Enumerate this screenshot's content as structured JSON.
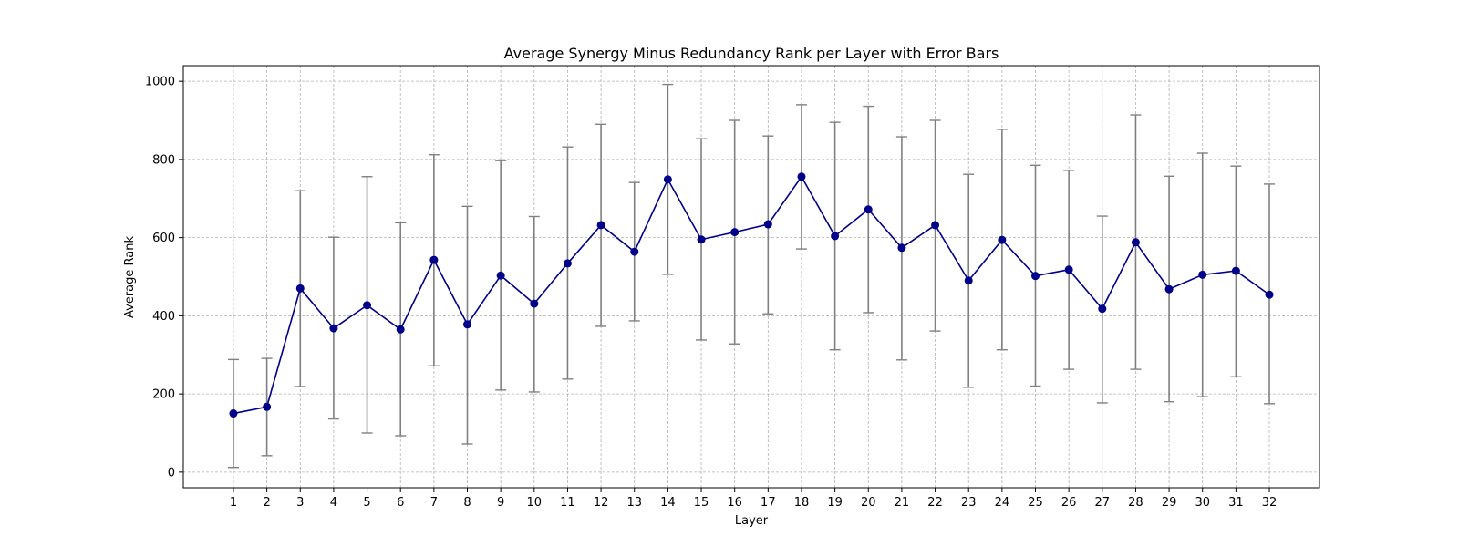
{
  "chart_data": {
    "type": "line",
    "title": "Average Synergy Minus Redundancy Rank per Layer with Error Bars",
    "xlabel": "Layer",
    "ylabel": "Average Rank",
    "x": [
      1,
      2,
      3,
      4,
      5,
      6,
      7,
      8,
      9,
      10,
      11,
      12,
      13,
      14,
      15,
      16,
      17,
      18,
      19,
      20,
      21,
      22,
      23,
      24,
      25,
      26,
      27,
      28,
      29,
      30,
      31,
      32
    ],
    "x_tick_labels": [
      "1",
      "2",
      "3",
      "4",
      "5",
      "6",
      "7",
      "8",
      "9",
      "10",
      "11",
      "12",
      "13",
      "14",
      "15",
      "16",
      "17",
      "18",
      "19",
      "20",
      "21",
      "22",
      "23",
      "24",
      "25",
      "26",
      "27",
      "28",
      "29",
      "30",
      "31",
      "32"
    ],
    "y_ticks": [
      0,
      200,
      400,
      600,
      800,
      1000
    ],
    "y_tick_labels": [
      "0",
      "200",
      "400",
      "600",
      "800",
      "1000"
    ],
    "xlim": [
      -0.5,
      33.5
    ],
    "ylim": [
      -40,
      1040
    ],
    "grid": true,
    "series": [
      {
        "values": [
          150,
          167,
          470,
          368,
          427,
          365,
          543,
          378,
          503,
          431,
          534,
          632,
          564,
          749,
          595,
          614,
          634,
          756,
          604,
          672,
          574,
          632,
          490,
          594,
          502,
          518,
          418,
          588,
          468,
          505,
          515,
          454
        ],
        "error_lower": [
          12,
          42,
          219,
          136,
          100,
          93,
          272,
          72,
          210,
          205,
          238,
          373,
          387,
          506,
          338,
          328,
          405,
          571,
          313,
          408,
          287,
          361,
          217,
          313,
          220,
          263,
          177,
          263,
          180,
          193,
          244,
          175
        ],
        "error_upper": [
          288,
          291,
          720,
          601,
          756,
          638,
          812,
          680,
          797,
          654,
          832,
          890,
          741,
          992,
          853,
          900,
          860,
          940,
          895,
          936,
          858,
          900,
          762,
          877,
          785,
          772,
          655,
          914,
          757,
          816,
          783,
          737
        ],
        "color": "#00008b",
        "error_color": "#808080"
      }
    ]
  }
}
